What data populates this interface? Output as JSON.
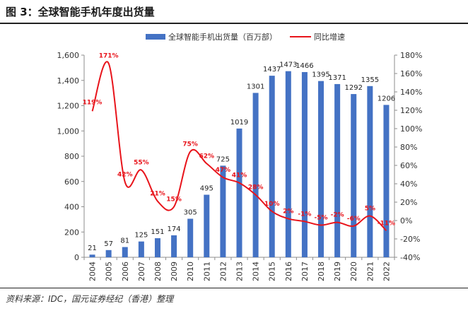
{
  "figure": {
    "title": "图 3：全球智能手机年度出货量",
    "source": "资料来源：IDC，国元证券经纪（香港）整理"
  },
  "colors": {
    "bar": "#4472C4",
    "line": "#E8141B",
    "axis": "#8c8c8c",
    "text": "#333333"
  },
  "chart_data": {
    "type": "bar",
    "categories": [
      "2004",
      "2005",
      "2006",
      "2007",
      "2008",
      "2009",
      "2010",
      "2011",
      "2012",
      "2013",
      "2014",
      "2015",
      "2016",
      "2017",
      "2018",
      "2019",
      "2020",
      "2021",
      "2022"
    ],
    "series": [
      {
        "name": "全球智能手机出货量（百万部）",
        "type": "bar",
        "axis": "left",
        "values": [
          21,
          57,
          81,
          125,
          151,
          174,
          305,
          495,
          725,
          1019,
          1301,
          1437,
          1473,
          1466,
          1395,
          1371,
          1292,
          1355,
          1206
        ],
        "labels": [
          "21",
          "57",
          "81",
          "125",
          "151",
          "174",
          "305",
          "495",
          "725",
          "1019",
          "1301",
          "1437",
          "1473",
          "1466",
          "1395",
          "1371",
          "1292",
          "1355",
          "1206"
        ]
      },
      {
        "name": "同比增速",
        "type": "line",
        "axis": "right",
        "values": [
          119,
          171,
          42,
          55,
          21,
          15,
          75,
          62,
          47,
          41,
          28,
          10,
          2,
          -1,
          -5,
          -2,
          -6,
          5,
          -11
        ],
        "labels": [
          "119%",
          "171%",
          "42%",
          "55%",
          "21%",
          "15%",
          "75%",
          "62%",
          "47%",
          "41%",
          "28%",
          "10%",
          "2%",
          "-1%",
          "-5%",
          "-2%",
          "-6%",
          "5%",
          "-11%"
        ]
      }
    ],
    "y_left": {
      "ylim": [
        0,
        1600
      ],
      "ticks": [
        "0",
        "200",
        "400",
        "600",
        "800",
        "1,000",
        "1,200",
        "1,400",
        "1,600"
      ]
    },
    "y_right": {
      "ylim": [
        -40,
        180
      ],
      "ticks": [
        "-40%",
        "-20%",
        "0%",
        "20%",
        "40%",
        "60%",
        "80%",
        "100%",
        "120%",
        "140%",
        "160%",
        "180%"
      ]
    },
    "legend_position": "top",
    "grid": false
  }
}
